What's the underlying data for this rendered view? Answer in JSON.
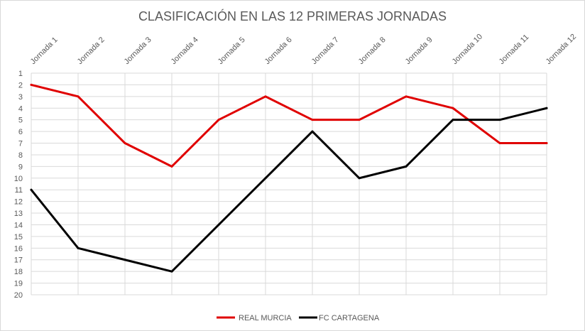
{
  "chart_data": {
    "type": "line",
    "title": "CLASIFICACIÓN EN LAS 12 PRIMERAS JORNADAS",
    "xlabel": "",
    "ylabel": "",
    "categories": [
      "Jornada 1",
      "Jornada 2",
      "Jornada 3",
      "Jornada 4",
      "Jornada 5",
      "Jornada 6",
      "Jornada 7",
      "Jornada 8",
      "Jornada 9",
      "Jornada 10",
      "Jornada 11",
      "Jornada 12"
    ],
    "y_ticks": [
      "1",
      "2",
      "3",
      "4",
      "5",
      "6",
      "7",
      "8",
      "9",
      "10",
      "11",
      "12",
      "13",
      "14",
      "15",
      "16",
      "17",
      "18",
      "19",
      "20"
    ],
    "ylim": [
      1,
      20
    ],
    "y_inverted": true,
    "grid": true,
    "legend_position": "bottom",
    "series": [
      {
        "name": "REAL MURCIA",
        "color": "#e00000",
        "values": [
          2,
          3,
          7,
          9,
          5,
          3,
          5,
          5,
          3,
          4,
          7,
          7
        ]
      },
      {
        "name": "FC CARTAGENA",
        "color": "#000000",
        "values": [
          11,
          16,
          17,
          18,
          14,
          10,
          6,
          10,
          9,
          5,
          5,
          4
        ]
      }
    ]
  }
}
